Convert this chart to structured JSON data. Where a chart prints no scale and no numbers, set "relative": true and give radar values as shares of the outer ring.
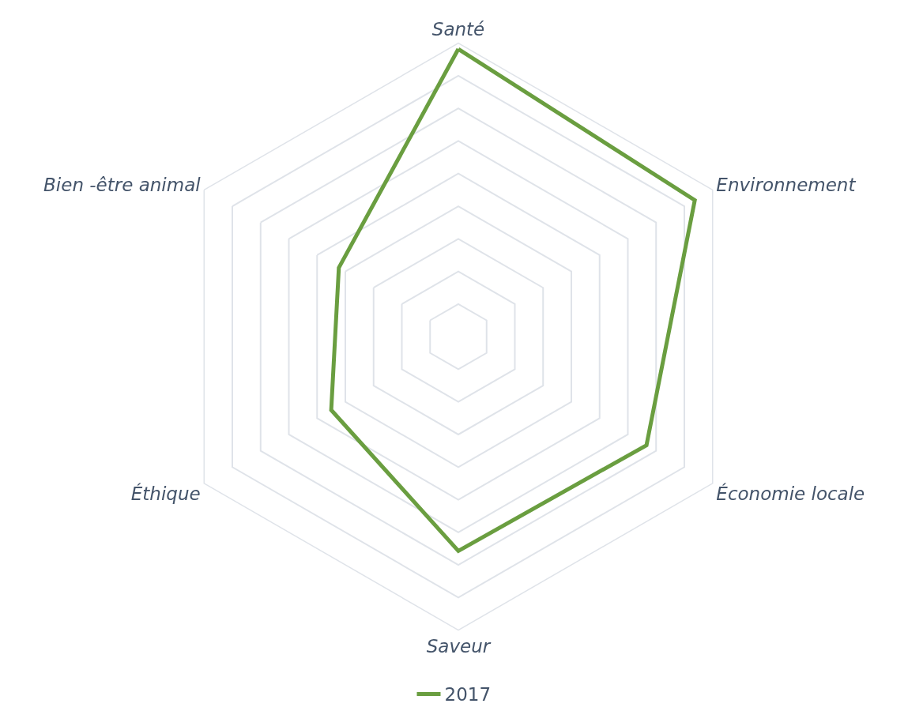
{
  "chart_data": {
    "type": "radar",
    "relative": true,
    "categories": [
      "Santé",
      "Environnement",
      "Économie locale",
      "Saveur",
      "Éthique",
      "Bien -être animal"
    ],
    "series": [
      {
        "name": "2017",
        "color": "#6a9e40",
        "values": [
          0.98,
          0.93,
          0.74,
          0.73,
          0.5,
          0.47
        ]
      }
    ],
    "grid": true,
    "legend": "bottom",
    "line_style": "solid"
  }
}
